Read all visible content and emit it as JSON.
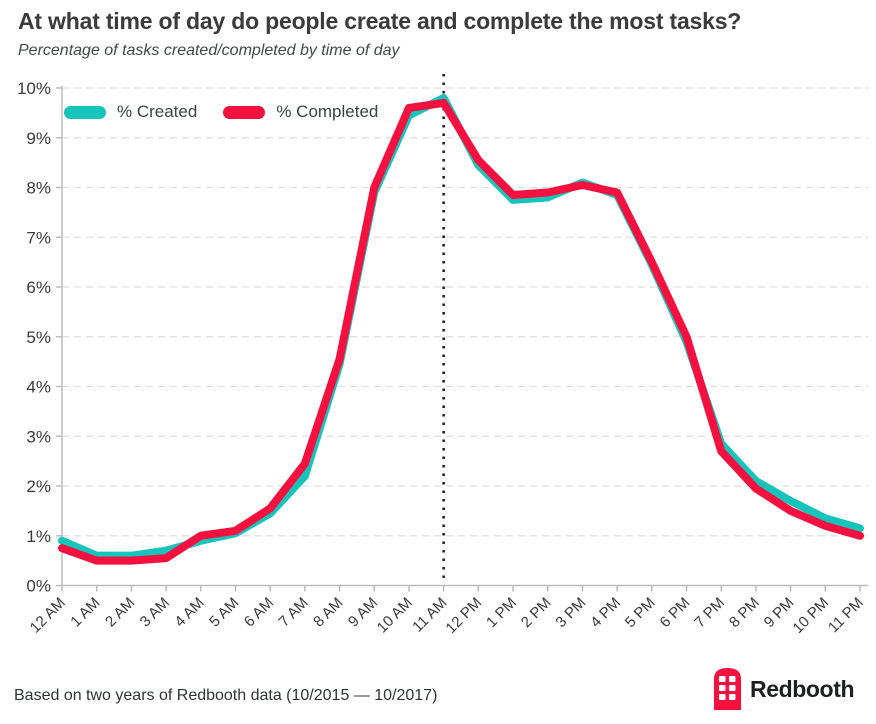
{
  "header": {
    "title": "At what time of day do people create and complete the most tasks?",
    "subtitle": "Percentage of tasks created/completed by time of day"
  },
  "legend": {
    "items": [
      {
        "label": "% Created",
        "color": "#16C4BB"
      },
      {
        "label": "% Completed",
        "color": "#F5113F"
      }
    ]
  },
  "footer": {
    "source": "Based on two years of Redbooth data (10/2015 — 10/2017)",
    "brand": "Redbooth",
    "brand_color": "#F5113F"
  },
  "chart_data": {
    "type": "line",
    "title": "At what time of day do people create and complete the most tasks?",
    "subtitle": "Percentage of tasks created/completed by time of day",
    "x": [
      "12 AM",
      "1 AM",
      "2 AM",
      "3 AM",
      "4 AM",
      "5 AM",
      "6 AM",
      "7 AM",
      "8 AM",
      "9 AM",
      "10 AM",
      "11 AM",
      "12 PM",
      "1 PM",
      "2 PM",
      "3 PM",
      "4 PM",
      "5 PM",
      "6 PM",
      "7 PM",
      "8 PM",
      "9 PM",
      "10 PM",
      "11 PM"
    ],
    "series": [
      {
        "name": "% Created",
        "color": "#16C4BB",
        "values": [
          0.9,
          0.6,
          0.6,
          0.7,
          0.9,
          1.05,
          1.45,
          2.2,
          4.45,
          7.9,
          9.45,
          9.8,
          8.45,
          7.75,
          7.8,
          8.1,
          7.85,
          6.45,
          4.9,
          2.85,
          2.1,
          1.7,
          1.35,
          1.15
        ]
      },
      {
        "name": "% Completed",
        "color": "#F5113F",
        "values": [
          0.75,
          0.5,
          0.5,
          0.55,
          1.0,
          1.1,
          1.55,
          2.45,
          4.55,
          8.0,
          9.6,
          9.7,
          8.55,
          7.85,
          7.9,
          8.05,
          7.9,
          6.5,
          5.0,
          2.7,
          1.95,
          1.5,
          1.2,
          1.0
        ]
      }
    ],
    "ylim": [
      0,
      10
    ],
    "yticks": [
      0,
      1,
      2,
      3,
      4,
      5,
      6,
      7,
      8,
      9,
      10
    ],
    "ytick_labels": [
      "0%",
      "1%",
      "2%",
      "3%",
      "4%",
      "5%",
      "6%",
      "7%",
      "8%",
      "9%",
      "10%"
    ],
    "xlabel": "",
    "ylabel": "",
    "grid": "horizontal-dashed",
    "legend_position": "top-left-inside",
    "annotation_line": {
      "x_label": "11 AM",
      "x_index": 11,
      "style": "dotted",
      "color": "#1a1a1a"
    },
    "axis_color": "#bdbdbd",
    "grid_color": "#dedede",
    "tick_text_color": "#3a3a3a"
  }
}
